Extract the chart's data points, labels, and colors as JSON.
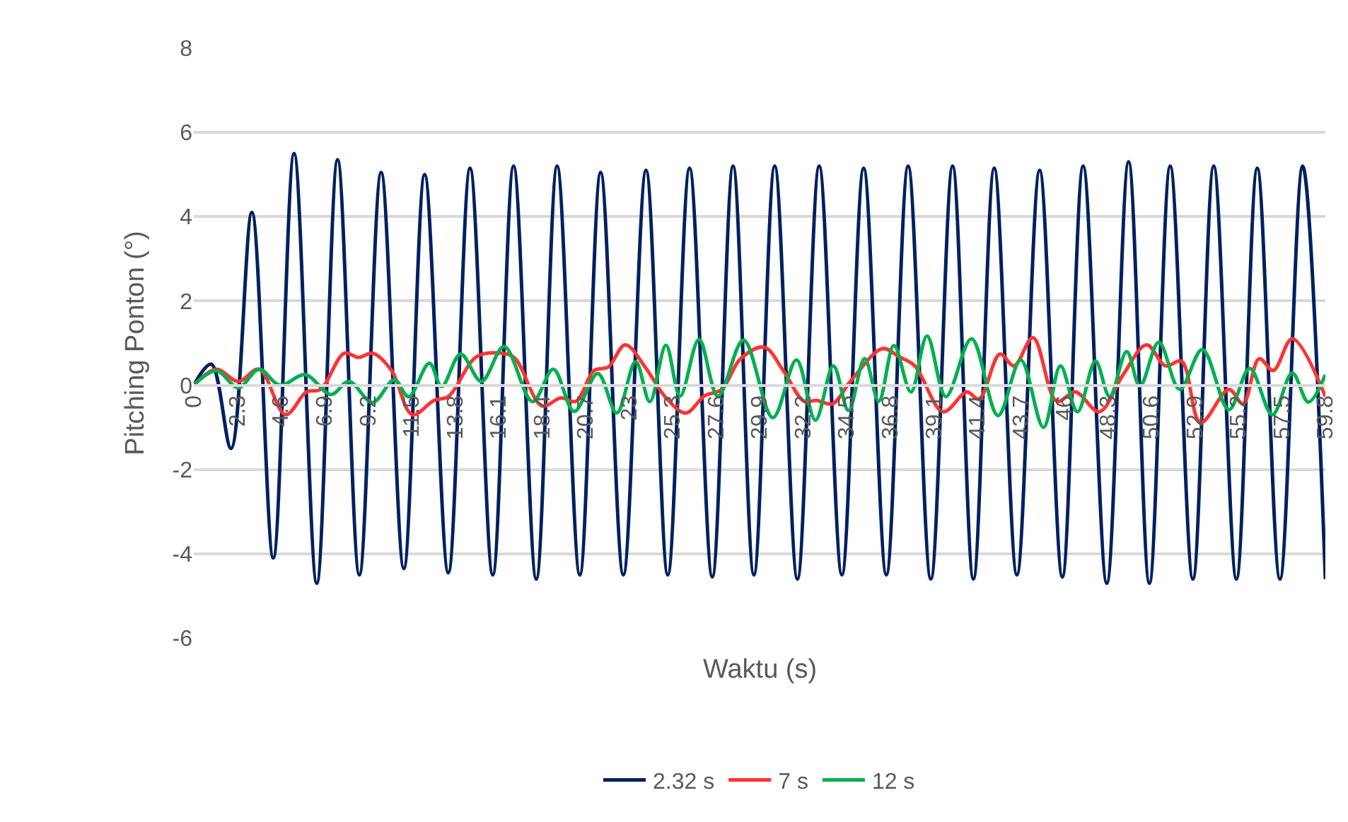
{
  "chart_data": {
    "type": "line",
    "xlabel": "Waktu (s)",
    "ylabel": "Pitching Ponton (°)",
    "xlim": [
      0,
      59.8
    ],
    "xticks": [
      0,
      2.3,
      4.6,
      6.9,
      9.2,
      11.5,
      13.8,
      16.1,
      18.4,
      20.7,
      23,
      25.3,
      27.6,
      29.9,
      32.2,
      34.5,
      36.8,
      39.1,
      41.4,
      43.7,
      46,
      48.3,
      50.6,
      52.9,
      55.2,
      57.5,
      59.8
    ],
    "ylim": [
      -6,
      8
    ],
    "yticks": [
      -6,
      -4,
      -2,
      0,
      2,
      4,
      6,
      8
    ],
    "grid": "y",
    "legend": "bottom",
    "marker": "none",
    "line_style": "solid",
    "series": [
      {
        "name": "2.32 s",
        "color": "#002060",
        "x": [
          0,
          0.92,
          1.97,
          3.07,
          4.2,
          5.3,
          6.5,
          7.6,
          8.75,
          9.9,
          11.1,
          12.2,
          13.45,
          14.6,
          15.8,
          16.9,
          18.1,
          19.2,
          20.4,
          21.5,
          22.7,
          23.9,
          25.05,
          26.2,
          27.4,
          28.5,
          29.6,
          30.7,
          31.9,
          33.05,
          34.25,
          35.4,
          36.6,
          37.75,
          38.95,
          40.1,
          41.2,
          42.3,
          43.5,
          44.7,
          45.9,
          47.0,
          48.25,
          49.4,
          50.5,
          51.6,
          52.8,
          53.9,
          55.1,
          56.2,
          57.4,
          58.6,
          59.8
        ],
        "values": [
          0,
          0.5,
          -1.5,
          4.1,
          -4.1,
          5.5,
          -4.7,
          5.35,
          -4.5,
          5.05,
          -4.35,
          5.0,
          -4.45,
          5.15,
          -4.5,
          5.2,
          -4.6,
          5.2,
          -4.5,
          5.05,
          -4.5,
          5.1,
          -4.5,
          5.15,
          -4.55,
          5.2,
          -4.5,
          5.2,
          -4.6,
          5.2,
          -4.5,
          5.15,
          -4.5,
          5.2,
          -4.6,
          5.2,
          -4.6,
          5.15,
          -4.5,
          5.1,
          -4.55,
          5.2,
          -4.7,
          5.3,
          -4.7,
          5.2,
          -4.6,
          5.2,
          -4.6,
          5.15,
          -4.6,
          5.2,
          -4.6
        ]
      },
      {
        "name": "7 s",
        "color": "#ff3333",
        "x": [
          0,
          1.2,
          2.35,
          3.45,
          4.85,
          5.95,
          6.7,
          7.95,
          8.7,
          9.45,
          10.45,
          11.55,
          12.7,
          13.45,
          14.95,
          16.2,
          16.95,
          18.4,
          19.4,
          20.2,
          21.15,
          21.9,
          22.8,
          23.9,
          24.9,
          26.0,
          27.0,
          27.9,
          28.9,
          30.15,
          31.15,
          32.25,
          32.9,
          33.75,
          34.75,
          36.4,
          37.25,
          38.1,
          39.6,
          40.85,
          41.5,
          42.6,
          43.35,
          44.35,
          45.6,
          46.6,
          47.85,
          49.1,
          50.35,
          51.35,
          52.2,
          53.2,
          54.7,
          55.45,
          56.3,
          57.05,
          58.05,
          59.8
        ],
        "values": [
          0,
          0.38,
          0.09,
          0.38,
          -0.7,
          -0.16,
          -0.1,
          0.76,
          0.66,
          0.76,
          0.35,
          -0.7,
          -0.36,
          -0.27,
          0.68,
          0.76,
          0.65,
          -0.49,
          -0.3,
          -0.38,
          0.35,
          0.43,
          0.96,
          0.4,
          -0.27,
          -0.66,
          -0.25,
          -0.1,
          0.63,
          0.9,
          0.35,
          -0.38,
          -0.36,
          -0.44,
          0.12,
          0.87,
          0.68,
          0.46,
          -0.63,
          -0.16,
          -0.33,
          0.74,
          0.46,
          1.13,
          -0.38,
          -0.16,
          -0.63,
          0.24,
          0.96,
          0.46,
          0.57,
          -0.89,
          -0.1,
          -0.44,
          0.63,
          0.35,
          1.1,
          -0.27
        ]
      },
      {
        "name": "12 s",
        "color": "#00b050",
        "x": [
          0,
          1.2,
          2.35,
          3.45,
          4.55,
          5.9,
          7.25,
          8.2,
          9.45,
          10.6,
          11.35,
          12.45,
          13.1,
          14.1,
          15.2,
          16.4,
          17.9,
          19.0,
          20.1,
          21.35,
          22.35,
          23.35,
          24.1,
          24.95,
          25.7,
          26.7,
          27.7,
          29.05,
          30.6,
          31.85,
          32.85,
          33.8,
          34.6,
          35.45,
          36.2,
          37.0,
          37.9,
          38.75,
          39.75,
          41.1,
          42.5,
          43.7,
          44.9,
          45.8,
          46.7,
          47.65,
          48.4,
          49.3,
          50.0,
          51.0,
          52.1,
          53.3,
          54.7,
          55.8,
          57.0,
          58.05,
          58.9,
          59.8
        ],
        "values": [
          0,
          0.34,
          -0.06,
          0.38,
          0,
          0.25,
          -0.22,
          0.09,
          -0.41,
          0.13,
          -0.27,
          0.52,
          -0.03,
          0.74,
          0.09,
          0.92,
          -0.39,
          0.38,
          -0.62,
          0.28,
          -0.66,
          0.56,
          -0.39,
          0.95,
          -0.26,
          1.09,
          -0.26,
          1.07,
          -0.77,
          0.6,
          -0.83,
          0.46,
          -0.6,
          0.63,
          -0.38,
          0.94,
          -0.16,
          1.17,
          -0.27,
          1.1,
          -0.72,
          0.6,
          -1.0,
          0.46,
          -0.63,
          0.57,
          -0.27,
          0.8,
          -0.02,
          1.02,
          -0.1,
          0.85,
          -0.58,
          0.4,
          -0.7,
          0.29,
          -0.4,
          0.25
        ]
      }
    ]
  }
}
